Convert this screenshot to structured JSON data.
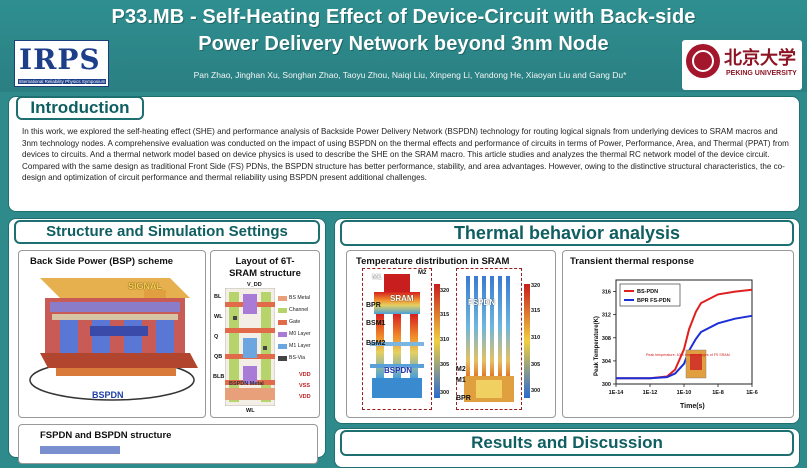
{
  "header": {
    "title_line1": "P33.MB - Self-Heating Effect of Device-Circuit with Back-side",
    "title_line2": "Power Delivery Network beyond 3nm Node",
    "authors": "Pan Zhao, Jinghan Xu, Songhan Zhao, Taoyu Zhou, Naiqi Liu, Xinpeng Li, Yandong He, Xiaoyan Liu and Gang Du*",
    "irps_logo": {
      "word": "IRPS",
      "subtitle": "International Reliability Physics Symposium"
    },
    "pku_logo": {
      "cn": "北京大学",
      "en": "PEKING UNIVERSITY"
    }
  },
  "intro": {
    "heading": "Introduction",
    "text": "In this work, we explored the self-heating effect (SHE) and performance analysis of Backside Power Delivery Network (BSPDN) technology for routing logical signals from underlying devices to SRAM macros and 3nm technology nodes. A comprehensive evaluation was conducted on the impact of using BSPDN on the thermal effects and performance of circuits in terms of Power, Performance, Area, and Thermal (PPAT) from devices to circuits. And a thermal network model based on device physics is used to describe the SHE on the SRAM macro. This article studies and analyzes the thermal RC network model of the device circuit. Compared with the same design as traditional Front Side (FS) PDNs, the BSPDN structure has better performance, stability, and area advantages. However, owing to the distinctive structural characteristics, the co-design and optimization of circuit performance and thermal reliability using BSPDN present additional challenges."
  },
  "structure": {
    "heading": "Structure and Simulation Settings",
    "bsp": {
      "title": "Back Side Power (BSP) scheme",
      "signal_label": "SIGNAL",
      "bspdn_label": "BSPDN"
    },
    "layout": {
      "title_line1": "Layout of 6T-",
      "title_line2": "SRAM structure",
      "vdd_top": "V_DD",
      "bspdn_metal_label": "BSPDN Metal",
      "bottom_label": "WL",
      "left_labels": [
        "BL",
        "WL",
        "Q",
        "QB",
        "BLB"
      ],
      "right_labels": [
        "VDD",
        "VSS",
        "VDD"
      ],
      "legend": [
        {
          "label": "BS Metal",
          "color": "#e8a07a"
        },
        {
          "label": "Channel",
          "color": "#b7d36b"
        },
        {
          "label": "Gate",
          "color": "#e06a4a"
        },
        {
          "label": "M0 Layer",
          "color": "#a77bd6"
        },
        {
          "label": "M1 Layer",
          "color": "#6ba6e0"
        },
        {
          "label": "BS-Via",
          "color": "#444444"
        }
      ]
    },
    "fspdn_title": "FSPDN and BSPDN structure"
  },
  "thermal": {
    "heading": "Thermal behavior analysis",
    "dist": {
      "title": "Temperature distribution in SRAM",
      "left_labels": [
        "M1",
        "M2",
        "SRAM",
        "BPR",
        "BSM1",
        "BSM2",
        "BSPDN"
      ],
      "left_scale": [
        "320",
        "315",
        "310",
        "305",
        "300"
      ],
      "right_labels": [
        "FSPDN",
        "M2",
        "M1",
        "BPR"
      ],
      "right_scale": [
        "320",
        "315",
        "310",
        "305",
        "300"
      ]
    },
    "transient": {
      "title": "Transient thermal response",
      "annotation": "Peak temperature: 10%  lower in stages of FS SRAM",
      "legend": [
        {
          "name": "BS-PDN",
          "color": "#e02020"
        },
        {
          "name": "BPR FS-PDN",
          "color": "#1c2fd6"
        }
      ]
    }
  },
  "results": {
    "heading": "Results and Discussion"
  },
  "chart_data": {
    "type": "line",
    "title": "Transient thermal response",
    "xlabel": "Time(s)",
    "ylabel": "Peak Temperature(K)",
    "xscale": "log",
    "x_ticks": [
      "1E-14",
      "1E-12",
      "1E-10",
      "1E-8",
      "1E-6"
    ],
    "y_ticks": [
      "300",
      "304",
      "308",
      "312",
      "316"
    ],
    "xlim": [
      1e-14,
      1e-06
    ],
    "ylim": [
      300,
      318
    ],
    "series": [
      {
        "name": "BS-PDN",
        "x": [
          1e-14,
          1e-12,
          1e-11,
          3e-11,
          1e-10,
          2e-10,
          5e-10,
          1e-09,
          1e-08,
          1e-07,
          1e-06
        ],
        "y": [
          301,
          301,
          301.3,
          302.5,
          306,
          309.5,
          312.5,
          314,
          315.5,
          316,
          316.3
        ]
      },
      {
        "name": "BPR FS-PDN",
        "x": [
          1e-14,
          1e-12,
          1e-11,
          3e-11,
          1e-10,
          2e-10,
          5e-10,
          1e-09,
          1e-08,
          1e-07,
          1e-06
        ],
        "y": [
          301,
          301,
          301.2,
          301.8,
          303.5,
          305.8,
          307.8,
          309,
          310.5,
          311.3,
          311.8
        ]
      }
    ]
  }
}
